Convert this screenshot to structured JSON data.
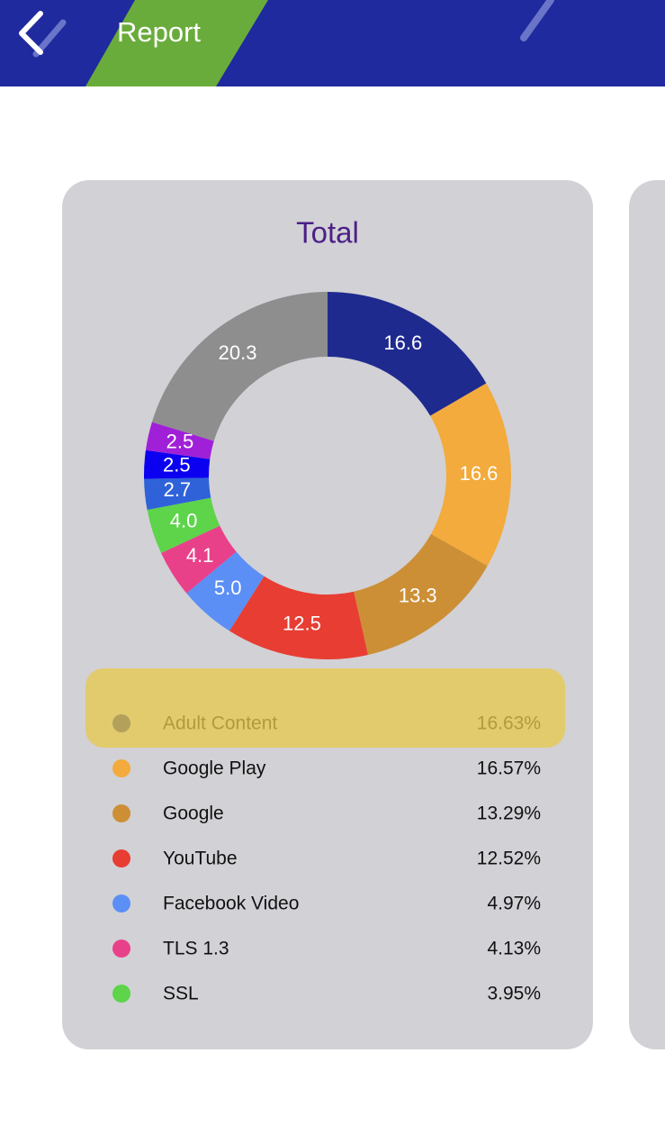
{
  "header": {
    "title": "Report"
  },
  "chart_data": {
    "type": "donut",
    "title": "Total",
    "categories": [
      "Adult Content",
      "Google Play",
      "Google",
      "YouTube",
      "Facebook Video",
      "TLS 1.3",
      "SSL",
      null,
      null,
      null,
      null
    ],
    "values": [
      16.63,
      16.57,
      13.29,
      12.52,
      4.97,
      4.13,
      3.95,
      2.7,
      2.5,
      2.5,
      20.3
    ],
    "value_labels": [
      "16.6",
      "16.6",
      "13.3",
      "12.5",
      "5.0",
      "4.1",
      "4.0",
      "2.7",
      "2.5",
      "2.5",
      "20.3"
    ],
    "percent_labels": [
      "16.63%",
      "16.57%",
      "13.29%",
      "12.52%",
      "4.97%",
      "4.13%",
      "3.95%"
    ],
    "colors": [
      "#1f2a8f",
      "#f2ab3c",
      "#cc8f35",
      "#e83d33",
      "#5b8ff5",
      "#e8418a",
      "#5dd44a",
      "#2f62d9",
      "#0b00f0",
      "#a020d8",
      "#8e8e8e"
    ]
  }
}
